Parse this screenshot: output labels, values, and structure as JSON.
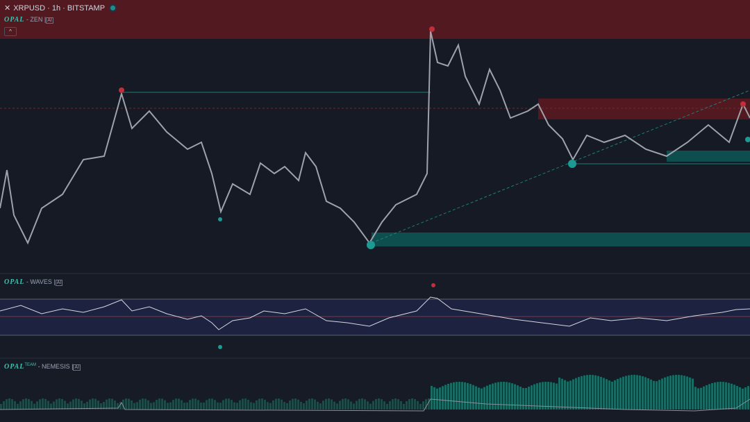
{
  "header": {
    "symbol": "XRPUSD · 1h · BITSTAMP"
  },
  "panes": [
    {
      "brand": "OPAL",
      "name": "- ZEN |",
      "badge": "AI"
    },
    {
      "brand": "OPAL",
      "name": "- WAVES |",
      "badge": "AI"
    },
    {
      "brand": "OPAL",
      "sup": "TEAM",
      "name": "- NEMESIS |",
      "badge": "AI"
    }
  ]
}
